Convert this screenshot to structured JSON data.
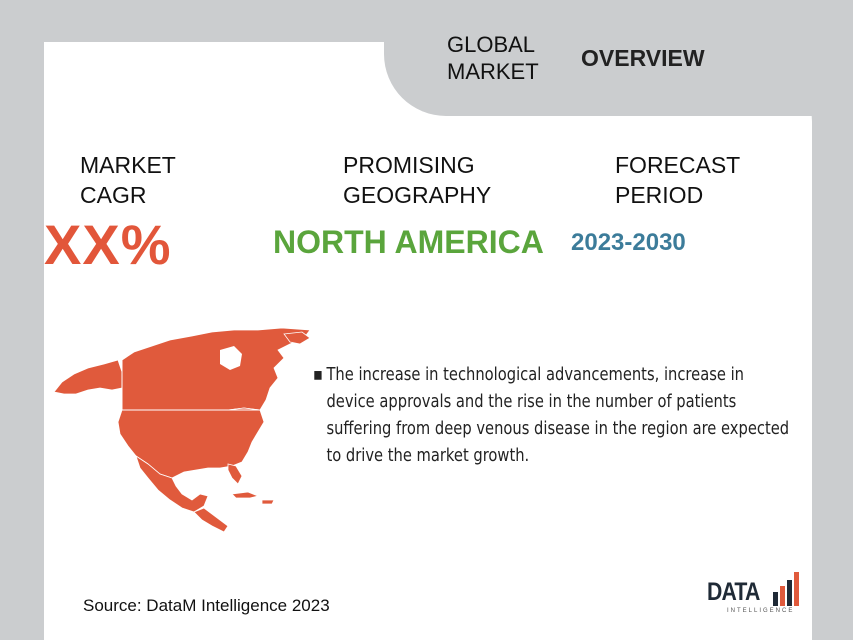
{
  "header": {
    "global_market": "GLOBAL\nMARKET",
    "overview": "OVERVIEW"
  },
  "metrics": {
    "cagr_label": "MARKET\nCAGR",
    "cagr_value": "XX%",
    "geography_label": "PROMISING\nGEOGRAPHY",
    "geography_value": "NORTH AMERICA",
    "period_label": "FORECAST\nPERIOD",
    "period_value": "2023-2030"
  },
  "bullets": [
    "The increase in technological advancements, increase in device approvals and the rise in the number of patients suffering from deep venous disease in the region are expected to drive the market growth."
  ],
  "bullet_symbol": "▪",
  "source": "Source: DataM Intelligence 2023",
  "logo": {
    "main": "DATA",
    "sub": "INTELLIGENCE"
  },
  "colors": {
    "cagr": "#e2563a",
    "geography": "#5aa53c",
    "period": "#3c7c9a",
    "map": "#e05a3c",
    "background": "#cbcdcf"
  },
  "icons": {
    "map": "north-america-map",
    "logo_bars": "bar-chart-logo-icon"
  }
}
